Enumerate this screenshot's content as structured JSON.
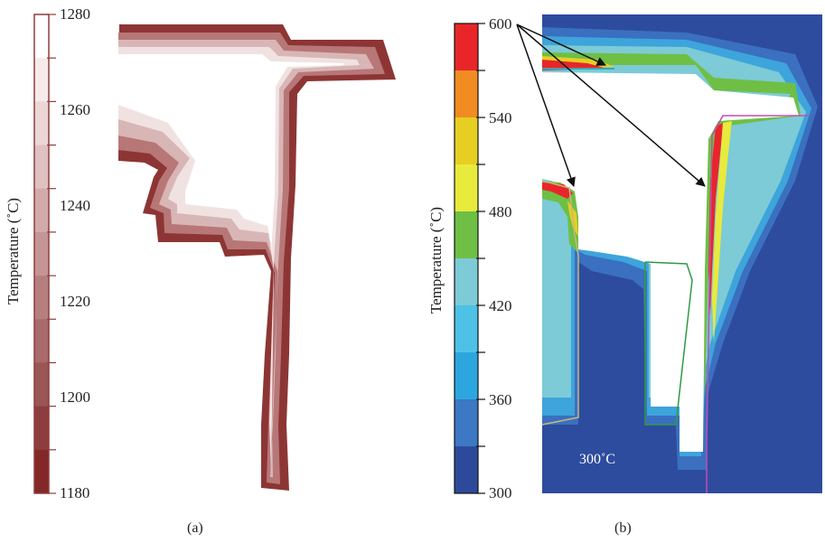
{
  "panel_a": {
    "caption": "(a)",
    "colorbar": {
      "title": "Temperature (˚C)",
      "ticks": [
        "1280",
        "1260",
        "1240",
        "1220",
        "1200",
        "1180"
      ],
      "colors": [
        "#ffffff",
        "#f6eaea",
        "#ecd5d5",
        "#e0c0c0",
        "#d3aaaa",
        "#c59595",
        "#b67f7f",
        "#a86a6a",
        "#9a5555",
        "#8d3d3d",
        "#832727"
      ]
    }
  },
  "panel_b": {
    "caption": "(b)",
    "colorbar": {
      "title": "Temperature (˚C)",
      "ticks": [
        "600",
        "540",
        "480",
        "420",
        "360",
        "300"
      ],
      "colors": [
        "#e8262a",
        "#f08c22",
        "#e6cf22",
        "#e8ea3c",
        "#6fbf45",
        "#7ccbd6",
        "#4dc2e6",
        "#2da6e0",
        "#3c78c4",
        "#2d4a9a"
      ]
    },
    "annotation": "300˚C",
    "background_color": "#2e4c9e"
  }
}
